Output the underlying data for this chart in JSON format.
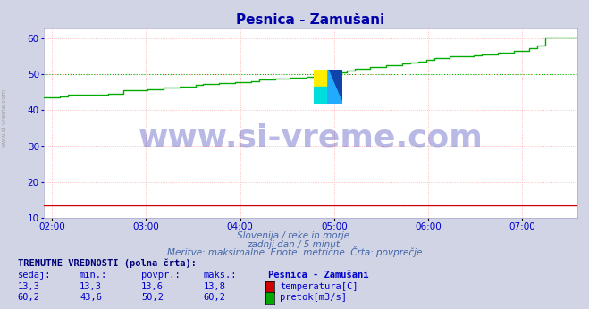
{
  "title": "Pesnica - Zamušani",
  "title_color": "#0000aa",
  "bg_color": "#d0d4e4",
  "plot_bg_color": "#ffffff",
  "grid_color": "#ffaaaa",
  "xlabel": "",
  "ylabel": "",
  "xlim_hours": [
    1.917,
    7.583
  ],
  "ylim": [
    10,
    63
  ],
  "yticks": [
    10,
    20,
    30,
    40,
    50,
    60
  ],
  "xtick_labels": [
    "02:00",
    "03:00",
    "04:00",
    "05:00",
    "06:00",
    "07:00"
  ],
  "xtick_positions": [
    2.0,
    3.0,
    4.0,
    5.0,
    6.0,
    7.0
  ],
  "temp_color": "#cc0000",
  "flow_color": "#00aa00",
  "avg_temp_color": "#dd4444",
  "avg_flow_color": "#00bb00",
  "watermark_text": "www.si-vreme.com",
  "watermark_color": "#1a1aaa",
  "watermark_alpha": 0.3,
  "subtitle1": "Slovenija / reke in morje.",
  "subtitle2": "zadnji dan / 5 minut.",
  "subtitle3": "Meritve: maksimalne  Enote: metrične  Črta: povprečje",
  "subtitle_color": "#4466aa",
  "table_title": "TRENUTNE VREDNOSTI (polna črta):",
  "table_title_color": "#000077",
  "col_headers": [
    "sedaj:",
    "min.:",
    "povpr.:",
    "maks.:",
    "Pesnica - Zamušani"
  ],
  "row1_vals": [
    "13,3",
    "13,3",
    "13,6",
    "13,8"
  ],
  "row1_label": "temperatura[C]",
  "row1_color": "#cc0000",
  "row2_vals": [
    "60,2",
    "43,6",
    "50,2",
    "60,2"
  ],
  "row2_label": "pretok[m3/s]",
  "row2_color": "#00aa00",
  "table_val_color": "#0000cc",
  "table_header_color": "#0000cc",
  "avg_temp_value": 13.6,
  "avg_flow_value": 50.2,
  "watermark_fontsize": 26,
  "left_text": "www.si-vreme.com",
  "left_text_color": "#aaaaaa",
  "arrow_color": "#cc0000"
}
